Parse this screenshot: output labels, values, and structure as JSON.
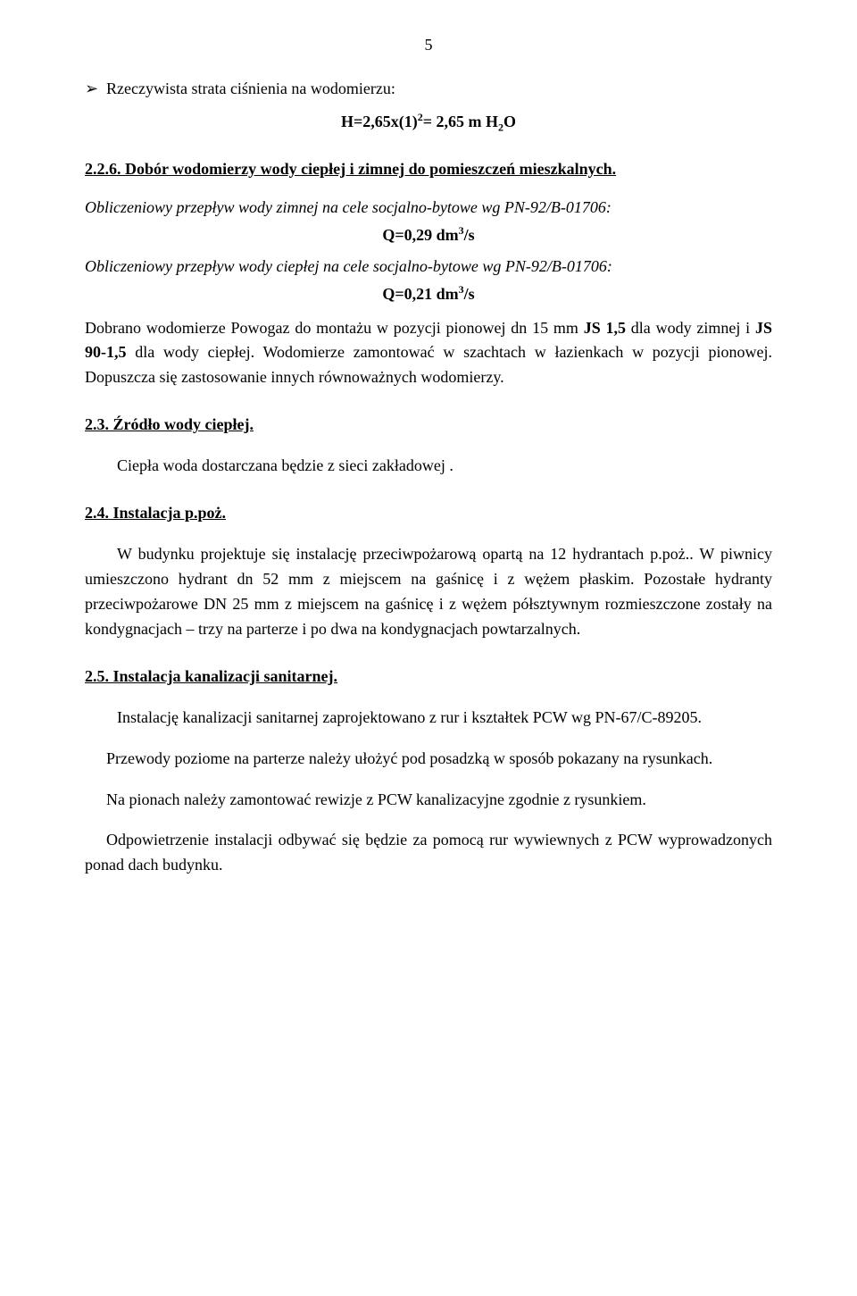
{
  "page_number": "5",
  "bullet_text": "Rzeczywista strata ciśnienia na wodomierzu:",
  "formula_html": "H=2,65x(1)<span class='sup'>2</span>= 2,65 m H<span class='sub'>2</span>O",
  "sec_2_2_6": "2.2.6. Dobór wodomierzy wody ciepłej i zimnej do pomieszczeń mieszkalnych.",
  "calc1_label": "Obliczeniowy przepływ wody zimnej  na cele socjalno-bytowe wg PN-92/B-01706:",
  "calc1_value_html": "Q=0,29 dm<span class='sup'>3</span>/s",
  "calc2_label": "Obliczeniowy przepływ wody ciepłej  na cele socjalno-bytowe wg PN-92/B-01706:",
  "calc2_value_html": "Q=0,21 dm<span class='sup'>3</span>/s",
  "para_dobrano_html": "Dobrano wodomierze Powogaz do montażu w pozycji pionowej dn 15 mm <span class='bold'>JS 1,5</span> dla wody zimnej i <span class='bold'>JS 90-1,5</span> dla wody ciepłej. Wodomierze zamontować w szachtach w łazienkach w pozycji pionowej. Dopuszcza się zastosowanie innych równoważnych wodomierzy.",
  "sec_2_3": "2.3. Źródło wody ciepłej.",
  "para_2_3": "Ciepła woda dostarczana będzie z sieci zakładowej .",
  "sec_2_4": "2.4.  Instalacja p.poż.",
  "para_2_4": "W budynku projektuje się instalację przeciwpożarową opartą na 12 hydrantach p.poż.. W piwnicy umieszczono hydrant dn 52 mm z miejscem na gaśnicę i z wężem płaskim. Pozostałe hydranty przeciwpożarowe DN 25 mm  z miejscem na gaśnicę i z wężem półsztywnym rozmieszczone zostały na kondygnacjach – trzy na parterze i po dwa na kondygnacjach powtarzalnych.",
  "sec_2_5": "2.5.  Instalacja kanalizacji sanitarnej.",
  "para_2_5a": "Instalację kanalizacji sanitarnej zaprojektowano z rur i kształtek PCW wg PN-67/C-89205.",
  "para_2_5b": "Przewody poziome na parterze należy ułożyć pod posadzką w sposób pokazany na rysunkach.",
  "para_2_5c": "Na pionach należy zamontować  rewizje z  PCW kanalizacyjne zgodnie z rysunkiem.",
  "para_2_5d": "Odpowietrzenie instalacji odbywać się będzie za pomocą rur wywiewnych z PCW wyprowadzonych ponad dach budynku."
}
